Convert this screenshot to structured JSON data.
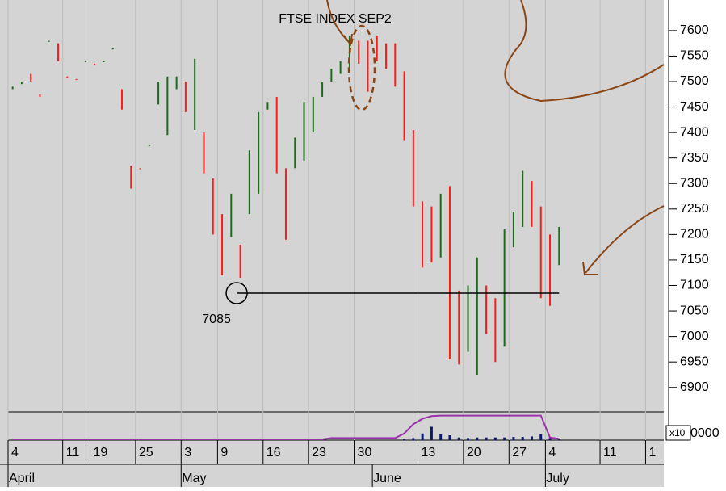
{
  "chart_data": {
    "type": "ohlc",
    "title": "FTSE INDEX SEP2",
    "annotation": {
      "value": 7085,
      "label": "7085",
      "from": 24.6,
      "to": 60
    },
    "xlim": [
      -0.5,
      71.5
    ],
    "ylim": [
      6860,
      7660
    ],
    "yticks": [
      6900,
      6950,
      7000,
      7050,
      7100,
      7150,
      7200,
      7250,
      7300,
      7350,
      7400,
      7450,
      7500,
      7550,
      7600
    ],
    "xticks": [
      {
        "value": -0.5,
        "label": "4"
      },
      {
        "value": 5.5,
        "label": "11"
      },
      {
        "value": 8.5,
        "label": "19"
      },
      {
        "value": 13.5,
        "label": "25"
      },
      {
        "value": 18.5,
        "label": "3"
      },
      {
        "value": 22.5,
        "label": "9"
      },
      {
        "value": 27.5,
        "label": "16"
      },
      {
        "value": 32.5,
        "label": "23"
      },
      {
        "value": 37.5,
        "label": "30"
      },
      {
        "value": 44.5,
        "label": "13"
      },
      {
        "value": 49.5,
        "label": "20"
      },
      {
        "value": 54.5,
        "label": "27"
      },
      {
        "value": 58.5,
        "label": "4"
      },
      {
        "value": 64.5,
        "label": "11"
      },
      {
        "value": 69.5,
        "label": "1"
      }
    ],
    "months": [
      {
        "value": -0.5,
        "label": "April"
      },
      {
        "value": 18.5,
        "label": "May"
      },
      {
        "value": 39.5,
        "label": "June"
      },
      {
        "value": 58.5,
        "label": "July"
      }
    ],
    "up_color": "#1a6b1a",
    "down_color": "#ff1a1a",
    "high": [
      7490,
      7500,
      7515,
      7475,
      7580,
      7575,
      7510,
      7505,
      7540,
      7535,
      7540,
      7565,
      7485,
      7335,
      7330,
      7375,
      7500,
      7510,
      7510,
      7500,
      7545,
      7400,
      7310,
      7240,
      7280,
      7180,
      7365,
      7440,
      7460,
      7470,
      7330,
      7390,
      7460,
      7470,
      7500,
      7525,
      7540,
      7590,
      7580,
      7580,
      7590,
      7575,
      7575,
      7520,
      7405,
      7265,
      7255,
      7280,
      7295,
      7090,
      7100,
      7155,
      7100,
      7075,
      7210,
      7245,
      7325,
      7305,
      7255,
      7200,
      7215
    ],
    "low": [
      7485,
      7495,
      7500,
      7470,
      7578,
      7540,
      7508,
      7503,
      7538,
      7533,
      7538,
      7563,
      7445,
      7290,
      7328,
      7373,
      7455,
      7395,
      7485,
      7440,
      7405,
      7320,
      7200,
      7120,
      7195,
      7115,
      7240,
      7280,
      7445,
      7320,
      7190,
      7330,
      7345,
      7400,
      7470,
      7500,
      7515,
      7525,
      7535,
      7480,
      7540,
      7525,
      7490,
      7385,
      7255,
      7135,
      7145,
      7155,
      6955,
      6945,
      6970,
      6925,
      7005,
      6950,
      6980,
      7175,
      7215,
      7215,
      7075,
      7060,
      7140
    ],
    "up": [
      true,
      true,
      false,
      false,
      true,
      false,
      false,
      false,
      true,
      false,
      true,
      true,
      false,
      false,
      false,
      true,
      true,
      true,
      true,
      false,
      true,
      false,
      false,
      false,
      true,
      false,
      true,
      true,
      true,
      false,
      false,
      true,
      true,
      true,
      true,
      true,
      true,
      true,
      false,
      false,
      false,
      false,
      false,
      false,
      false,
      false,
      false,
      true,
      false,
      false,
      true,
      true,
      false,
      false,
      true,
      true,
      true,
      false,
      false,
      false,
      true
    ],
    "volume_color": "#0a1a6e",
    "oi_color": "#9933aa",
    "vol_ylim": [
      0,
      100
    ],
    "vol_label": "x10",
    "vol_tick": "0000",
    "volume": [
      null,
      null,
      null,
      null,
      null,
      null,
      null,
      null,
      null,
      null,
      null,
      null,
      null,
      null,
      null,
      null,
      null,
      null,
      null,
      null,
      null,
      null,
      null,
      null,
      null,
      null,
      null,
      null,
      null,
      null,
      null,
      null,
      null,
      null,
      null,
      null,
      null,
      null,
      null,
      null,
      null,
      null,
      null,
      5,
      8,
      25,
      50,
      22,
      18,
      10,
      8,
      10,
      10,
      10,
      10,
      12,
      12,
      14,
      22,
      8,
      6
    ],
    "open_interest": [
      3,
      3,
      3,
      3,
      3,
      3,
      3,
      3,
      3,
      3,
      3,
      3,
      3,
      3,
      3,
      3,
      3,
      3,
      3,
      3,
      3,
      3,
      3,
      3,
      3,
      3,
      3,
      3,
      3,
      3,
      3,
      3,
      3,
      3,
      3,
      8,
      8,
      8,
      8,
      8,
      8,
      8,
      8,
      25,
      60,
      80,
      90,
      92,
      92,
      92,
      92,
      92,
      92,
      92,
      92,
      92,
      92,
      92,
      92,
      10,
      5
    ]
  }
}
